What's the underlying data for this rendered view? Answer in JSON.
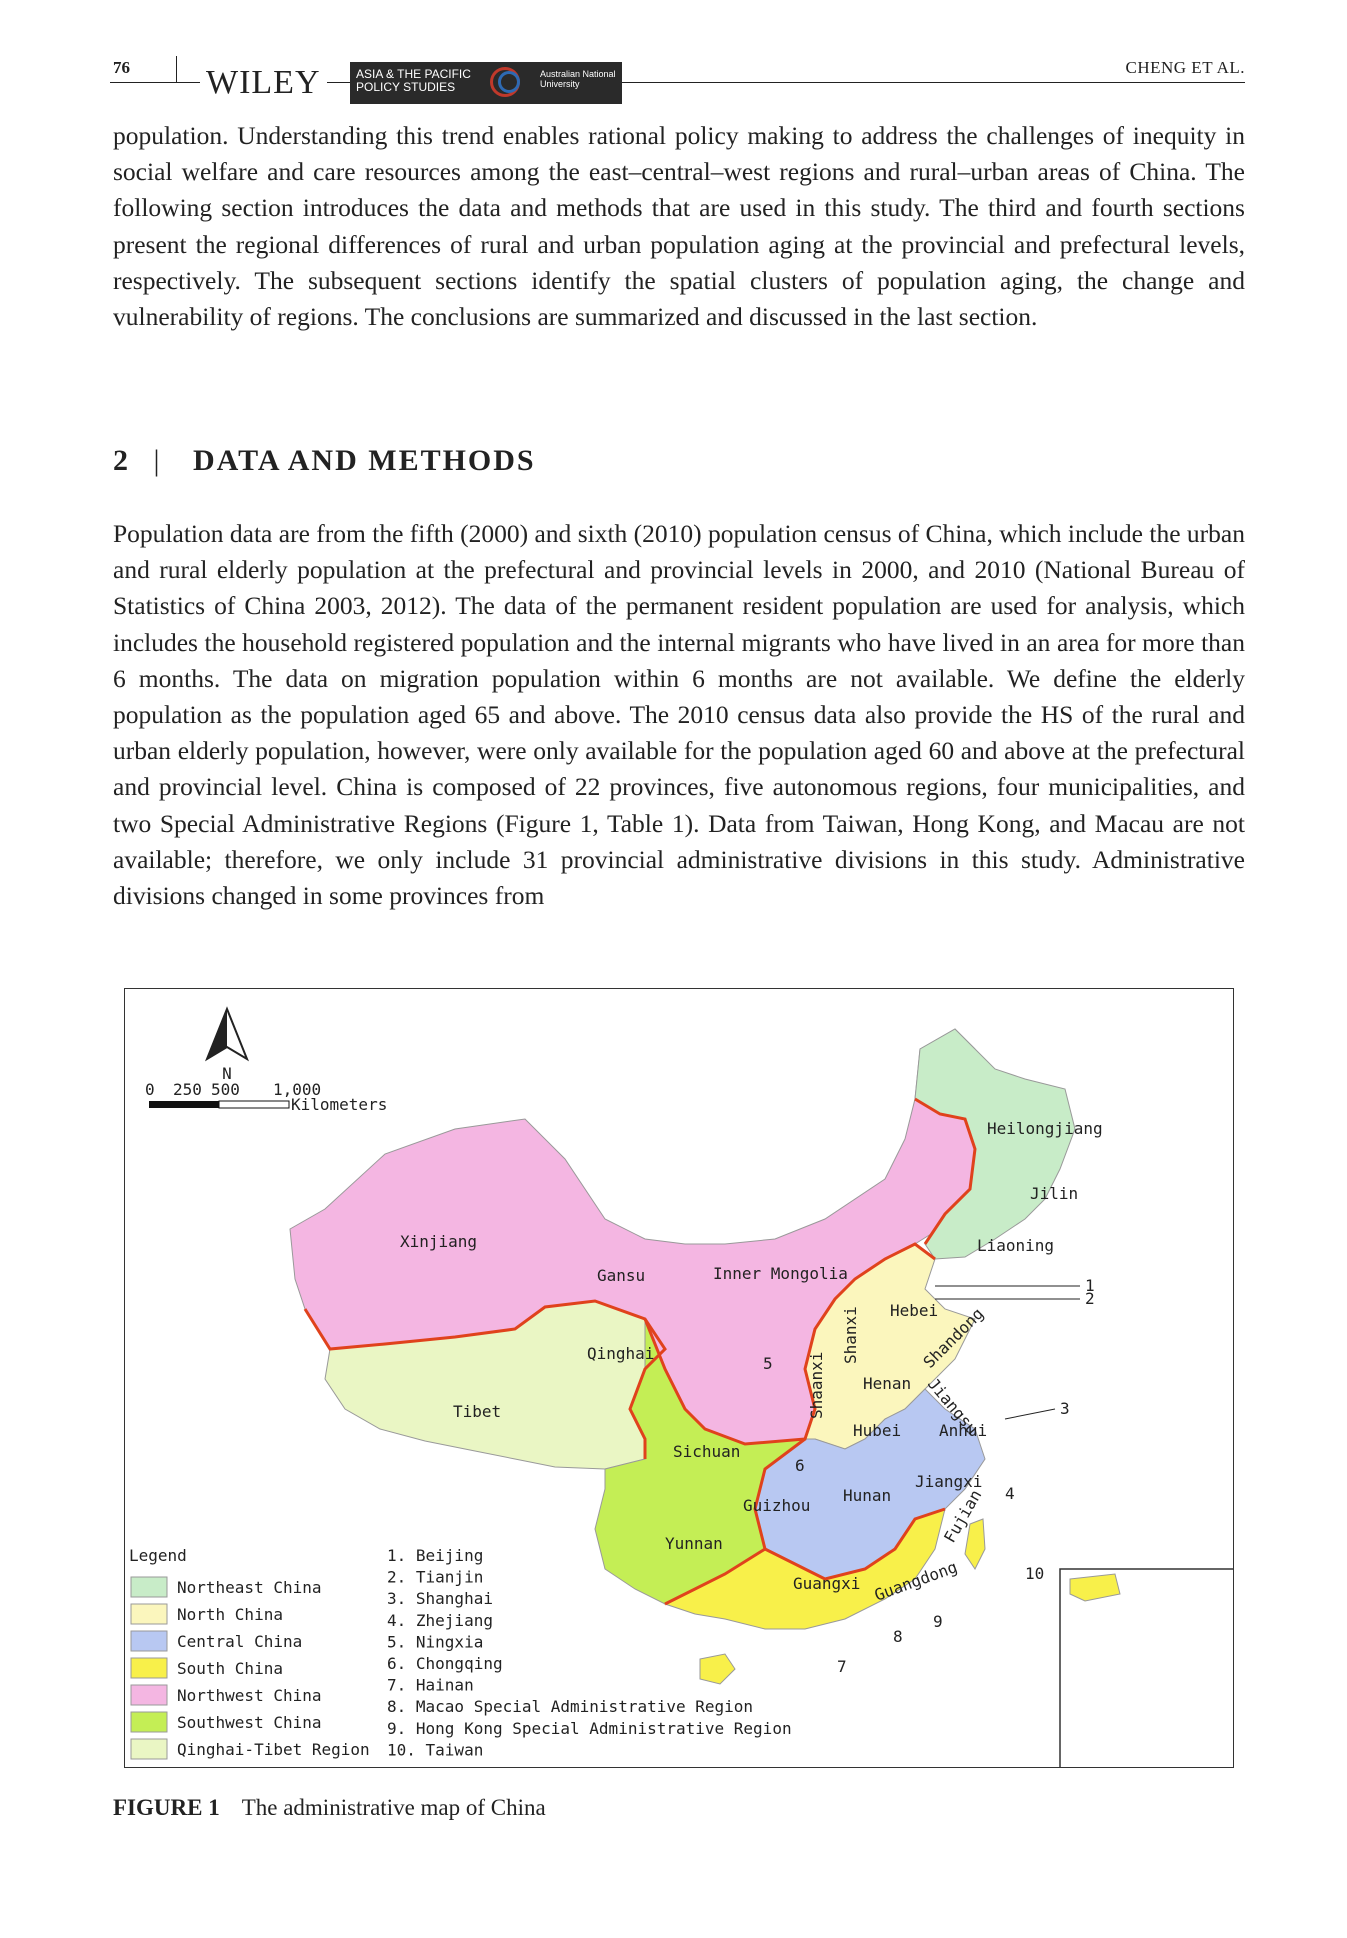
{
  "header": {
    "page_number": "76",
    "publisher": "WILEY",
    "journal_name": "ASIA & THE PACIFIC POLICY STUDIES",
    "institution": "Australian National University",
    "running_head": "CHENG ET AL."
  },
  "body": {
    "paragraph_1": "population. Understanding this trend enables rational policy making to address the challenges of inequity in social welfare and care resources among the east–central–west regions and rural–urban areas of China. The following section introduces the data and methods that are used in this study. The third and fourth sections present the regional differences of rural and urban population aging at the provincial and prefectural levels, respectively. The subsequent sections identify the spatial clusters of population aging, the change and vulnerability of regions. The conclusions are summarized and discussed in the last section.",
    "section_number": "2",
    "section_divider": "|",
    "section_title": "DATA AND METHODS",
    "paragraph_2": "Population data are from the fifth (2000) and sixth (2010) population census of China, which include the urban and rural elderly population at the prefectural and provincial levels in 2000, and 2010 (National Bureau of Statistics of China 2003, 2012). The data of the permanent resident population are used for analysis, which includes the household registered population and the internal migrants who have lived in an area for more than 6 months. The data on migration population within 6 months are not available. We define the elderly population as the population aged 65 and above. The 2010 census data also provide the HS of the rural and urban elderly population, however, were only available for the population aged 60 and above at the prefectural and provincial level. China is composed of 22 provinces, five autonomous regions, four municipalities, and two Special Administrative Regions (Figure 1, Table 1). Data from Taiwan, Hong Kong, and Macau are not available; therefore, we only include 31 provincial administrative divisions in this study. Administrative divisions changed in some provinces from"
  },
  "figure": {
    "label": "FIGURE 1",
    "caption": "The administrative map of China",
    "north_label": "N",
    "scale_ticks": [
      "0",
      "250",
      "500",
      "1,000"
    ],
    "scale_unit": "Kilometers",
    "legend_title": "Legend",
    "legend": [
      {
        "label": "Northeast China",
        "color": "#c8ecc8"
      },
      {
        "label": "North China",
        "color": "#fbf6bd"
      },
      {
        "label": "Central China",
        "color": "#b8c8f2"
      },
      {
        "label": "South China",
        "color": "#f8f04a"
      },
      {
        "label": "Northwest China",
        "color": "#f4b6e2"
      },
      {
        "label": "Southwest China",
        "color": "#c4ee55"
      },
      {
        "label": "Qinghai-Tibet Region",
        "color": "#eaf6c4"
      }
    ],
    "numbered_list": [
      "1. Beijing",
      "2. Tianjin",
      "3. Shanghai",
      "4. Zhejiang",
      "5. Ningxia",
      "6. Chongqing",
      "7. Hainan",
      "8. Macao Special Administrative Region",
      "9. Hong Kong Special Administrative Region",
      "10. Taiwan"
    ],
    "province_labels": {
      "heilongjiang": "Heilongjiang",
      "jilin": "Jilin",
      "liaoning": "Liaoning",
      "xinjiang": "Xinjiang",
      "gansu": "Gansu",
      "inner_mongolia": "Inner Mongolia",
      "hebei": "Hebei",
      "shanxi": "Shanxi",
      "shandong": "Shandong",
      "qinghai": "Qinghai",
      "shaanxi": "Shaanxi",
      "henan": "Henan",
      "jiangsu": "Jiangsu",
      "tibet": "Tibet",
      "sichuan": "Sichuan",
      "hubei": "Hubei",
      "anhui": "Anhui",
      "jiangxi": "Jiangxi",
      "hunan": "Hunan",
      "guizhou": "Guizhou",
      "yunnan": "Yunnan",
      "fujian": "Fujian",
      "guangxi": "Guangxi",
      "guangdong": "Guangdong"
    },
    "callout_numbers": [
      "1",
      "2",
      "3",
      "4",
      "5",
      "6",
      "7",
      "8",
      "9",
      "10"
    ]
  }
}
